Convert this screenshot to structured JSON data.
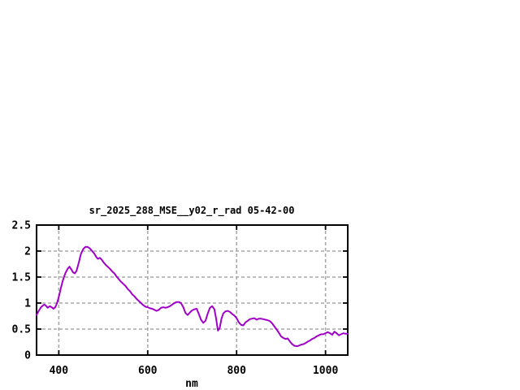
{
  "window": {
    "background_color": "#ffffff"
  },
  "chart_data": {
    "type": "line",
    "title": "sr_2025_288_MSE__y02_r_rad 05-42-00",
    "xlabel": "nm",
    "ylabel": "",
    "xlim": [
      350,
      1050
    ],
    "ylim": [
      0,
      2.5
    ],
    "xticks": [
      400,
      600,
      800,
      1000
    ],
    "xtick_labels": [
      "400",
      "600",
      "800",
      "1000"
    ],
    "yticks": [
      0,
      0.5,
      1,
      1.5,
      2,
      2.5
    ],
    "ytick_labels": [
      "0",
      "0.5",
      "1",
      "1.5",
      "2",
      "2.5"
    ],
    "grid": true,
    "grid_style": "dashed",
    "legend": "none",
    "line_color": "#a000c8",
    "grid_color": "#a8a8a8",
    "axis_color": "#000000",
    "series": [
      {
        "name": "sr_2025_288_MSE__y02_r_rad",
        "x": [
          350,
          355,
          360,
          365,
          368,
          372,
          375,
          380,
          384,
          388,
          392,
          396,
          400,
          405,
          410,
          415,
          420,
          424,
          428,
          432,
          436,
          440,
          445,
          450,
          455,
          460,
          465,
          470,
          475,
          480,
          484,
          488,
          492,
          496,
          500,
          505,
          510,
          515,
          520,
          525,
          530,
          535,
          540,
          545,
          550,
          555,
          560,
          565,
          570,
          575,
          580,
          585,
          590,
          595,
          600,
          605,
          610,
          615,
          620,
          625,
          630,
          635,
          640,
          645,
          650,
          655,
          660,
          665,
          670,
          675,
          680,
          685,
          690,
          695,
          700,
          705,
          710,
          715,
          720,
          725,
          730,
          735,
          740,
          745,
          750,
          754,
          758,
          762,
          766,
          770,
          775,
          780,
          785,
          790,
          795,
          800,
          805,
          810,
          815,
          820,
          825,
          830,
          835,
          840,
          845,
          850,
          855,
          860,
          865,
          870,
          875,
          880,
          885,
          890,
          895,
          900,
          905,
          910,
          915,
          920,
          925,
          930,
          935,
          940,
          945,
          950,
          955,
          960,
          965,
          970,
          975,
          980,
          985,
          990,
          995,
          1000,
          1005,
          1010,
          1015,
          1020,
          1025,
          1030,
          1035,
          1040,
          1045,
          1050
        ],
        "y": [
          0.77,
          0.85,
          0.92,
          0.96,
          0.97,
          0.94,
          0.91,
          0.94,
          0.92,
          0.89,
          0.92,
          1.0,
          1.12,
          1.3,
          1.46,
          1.58,
          1.66,
          1.7,
          1.65,
          1.59,
          1.57,
          1.62,
          1.78,
          1.95,
          2.04,
          2.08,
          2.08,
          2.05,
          2.0,
          1.95,
          1.89,
          1.85,
          1.87,
          1.84,
          1.79,
          1.74,
          1.7,
          1.66,
          1.61,
          1.57,
          1.51,
          1.46,
          1.41,
          1.37,
          1.33,
          1.27,
          1.23,
          1.17,
          1.13,
          1.08,
          1.04,
          1.0,
          0.96,
          0.93,
          0.92,
          0.9,
          0.89,
          0.87,
          0.85,
          0.87,
          0.91,
          0.92,
          0.91,
          0.92,
          0.94,
          0.97,
          1.0,
          1.02,
          1.02,
          1.0,
          0.92,
          0.81,
          0.77,
          0.82,
          0.86,
          0.88,
          0.89,
          0.79,
          0.68,
          0.62,
          0.66,
          0.8,
          0.91,
          0.94,
          0.88,
          0.7,
          0.47,
          0.52,
          0.7,
          0.8,
          0.84,
          0.85,
          0.83,
          0.79,
          0.76,
          0.71,
          0.63,
          0.58,
          0.57,
          0.63,
          0.66,
          0.69,
          0.7,
          0.71,
          0.68,
          0.7,
          0.7,
          0.69,
          0.68,
          0.67,
          0.65,
          0.61,
          0.55,
          0.49,
          0.43,
          0.36,
          0.33,
          0.31,
          0.32,
          0.26,
          0.21,
          0.18,
          0.17,
          0.18,
          0.2,
          0.21,
          0.23,
          0.26,
          0.28,
          0.31,
          0.33,
          0.36,
          0.38,
          0.4,
          0.4,
          0.42,
          0.44,
          0.42,
          0.39,
          0.45,
          0.42,
          0.38,
          0.4,
          0.42,
          0.41,
          0.41
        ]
      }
    ]
  }
}
